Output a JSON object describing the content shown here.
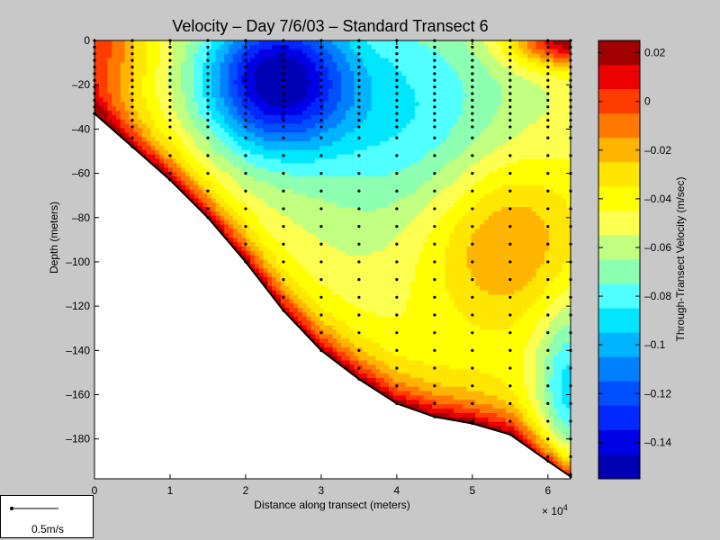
{
  "chart_data": {
    "type": "heatmap",
    "title": "Velocity – Day 7/6/03 – Standard Transect 6",
    "xlabel": "Distance along transect (meters)",
    "ylabel": "Depth (meters)",
    "x_multiplier_label": "× 10",
    "x_multiplier_exponent": "4",
    "xlim": [
      0,
      63000
    ],
    "ylim": [
      -198,
      0
    ],
    "x_ticks": [
      0,
      1,
      2,
      3,
      4,
      5,
      6
    ],
    "y_ticks": [
      0,
      -20,
      -40,
      -60,
      -80,
      -100,
      -120,
      -140,
      -160,
      -180
    ],
    "bathymetry": {
      "x": [
        0,
        5000,
        10000,
        15000,
        20000,
        25000,
        30000,
        35000,
        40000,
        45000,
        50000,
        55000,
        60000,
        63000
      ],
      "depth": [
        -33,
        -48,
        -63,
        -80,
        -100,
        -122,
        -140,
        -153,
        -164,
        -170,
        -173,
        -178,
        -190,
        -197
      ]
    },
    "station_x": [
      0,
      5000,
      10000,
      15000,
      20000,
      25000,
      30000,
      35000,
      40000,
      45000,
      50000,
      55000,
      60000,
      63000
    ],
    "colorbar": {
      "label": "Through-Transect Velocity (m/sec)",
      "ticks": [
        0.02,
        0,
        -0.02,
        -0.04,
        -0.06,
        -0.08,
        -0.1,
        -0.12,
        -0.14
      ],
      "tick_labels": [
        "0.02",
        "0",
        "–0.02",
        "–0.04",
        "–0.06",
        "–0.08",
        "–0.1",
        "–0.12",
        "–0.14"
      ],
      "range": [
        -0.155,
        0.025
      ],
      "levels": [
        {
          "max": 0.025,
          "color": "#a00000"
        },
        {
          "max": 0.015,
          "color": "#ec0000"
        },
        {
          "max": 0.005,
          "color": "#ff3c00"
        },
        {
          "max": -0.005,
          "color": "#ff7800"
        },
        {
          "max": -0.015,
          "color": "#ffb400"
        },
        {
          "max": -0.025,
          "color": "#ffe600"
        },
        {
          "max": -0.035,
          "color": "#ffff00"
        },
        {
          "max": -0.045,
          "color": "#fcff50"
        },
        {
          "max": -0.055,
          "color": "#c0ff80"
        },
        {
          "max": -0.065,
          "color": "#8cffb0"
        },
        {
          "max": -0.075,
          "color": "#50ffff"
        },
        {
          "max": -0.085,
          "color": "#00e6ff"
        },
        {
          "max": -0.095,
          "color": "#00b4ff"
        },
        {
          "max": -0.105,
          "color": "#0080ff"
        },
        {
          "max": -0.115,
          "color": "#0050ff"
        },
        {
          "max": -0.125,
          "color": "#0028ff"
        },
        {
          "max": -0.135,
          "color": "#0000e6"
        },
        {
          "max": -0.145,
          "color": "#0000b4"
        }
      ]
    }
  },
  "legend": {
    "scale_label": "0.5m/s"
  }
}
